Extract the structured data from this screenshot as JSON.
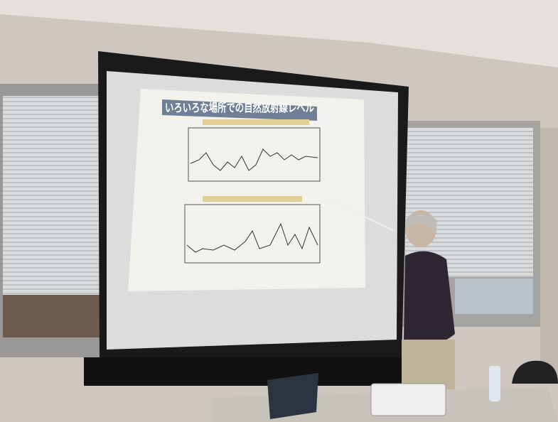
{
  "slide": {
    "title": "いろいろな場所での自然放射線レベル"
  }
}
